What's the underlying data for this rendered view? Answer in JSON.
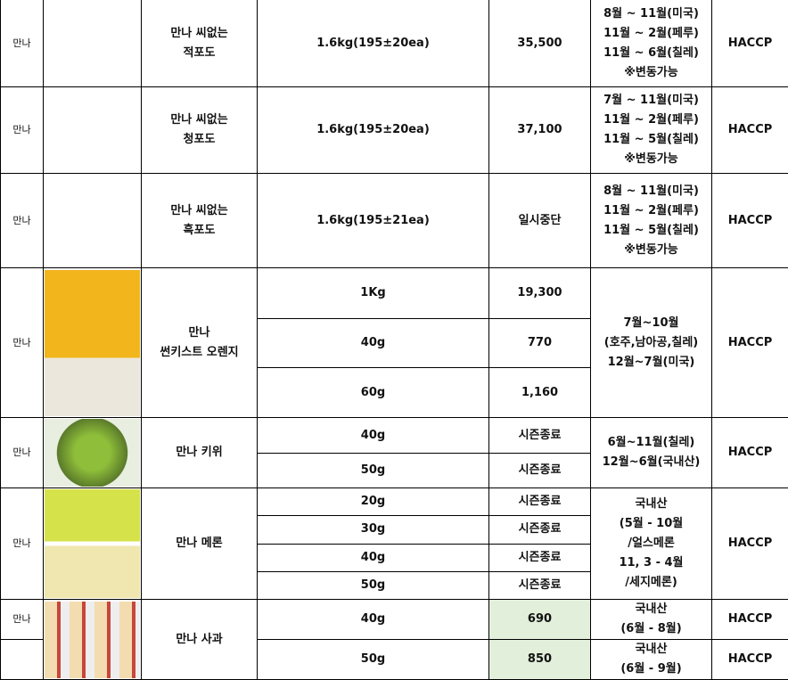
{
  "colors": {
    "price_highlight": "#e2efda"
  },
  "rows": [
    {
      "brand": "만나",
      "name": "만나 씨없는\n적포도",
      "spec": "1.6kg(195±20ea)",
      "price": "35,500",
      "season": "8월 ~ 11월(미국)\n11월 ~ 2월(페루)\n11월 ~ 6월(칠레)\n※변동가능",
      "cert": "HACCP"
    },
    {
      "brand": "만나",
      "name": "만나 씨없는\n청포도",
      "spec": "1.6kg(195±20ea)",
      "price": "37,100",
      "season": "7월 ~ 11월(미국)\n11월 ~ 2월(페루)\n11월 ~ 5월(칠레)\n※변동가능",
      "cert": "HACCP"
    },
    {
      "brand": "만나",
      "name": "만나 씨없는\n흑포도",
      "spec": "1.6kg(195±21ea)",
      "price": "일시중단",
      "season": "8월 ~ 11월(미국)\n11월 ~ 2월(페루)\n11월 ~ 5월(칠레)\n※변동가능",
      "cert": "HACCP"
    },
    {
      "brand": "만나",
      "name": "만나\n썬키스트 오렌지",
      "variants": [
        {
          "spec": "1Kg",
          "price": "19,300"
        },
        {
          "spec": "40g",
          "price": "770"
        },
        {
          "spec": "60g",
          "price": "1,160"
        }
      ],
      "season": "7월~10월\n(호주,남아공,칠레)\n12월~7월(미국)",
      "cert": "HACCP"
    },
    {
      "brand": "만나",
      "name": "만나 키위",
      "variants": [
        {
          "spec": "40g",
          "price": "시즌종료"
        },
        {
          "spec": "50g",
          "price": "시즌종료"
        }
      ],
      "season": "6월~11월(칠레)\n12월~6월(국내산)",
      "cert": "HACCP"
    },
    {
      "brand": "만나",
      "name": "만나 메론",
      "variants": [
        {
          "spec": "20g",
          "price": "시즌종료"
        },
        {
          "spec": "30g",
          "price": "시즌종료"
        },
        {
          "spec": "40g",
          "price": "시즌종료"
        },
        {
          "spec": "50g",
          "price": "시즌종료"
        }
      ],
      "season": "국내산\n(5월 - 10월\n/얼스메론\n11, 3 - 4월\n/세지메론)",
      "cert": "HACCP"
    },
    {
      "brand": "만나",
      "name": "만나 사과",
      "variants": [
        {
          "spec": "40g",
          "price": "690",
          "season": "국내산\n(6월 - 8월)",
          "cert": "HACCP"
        },
        {
          "spec": "50g",
          "price": "850",
          "season": "국내산\n(6월 - 9월)",
          "cert": "HACCP"
        }
      ]
    }
  ]
}
